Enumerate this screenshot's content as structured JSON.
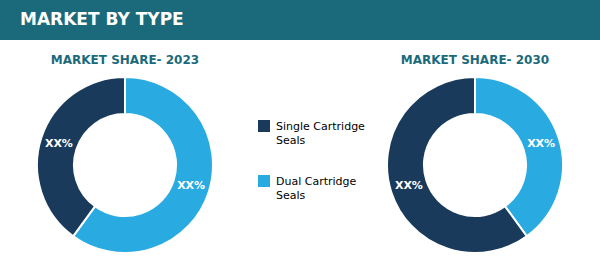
{
  "title": "MARKET BY TYPE",
  "chart_data": [
    {
      "type": "pie",
      "title": "MARKET SHARE- 2023",
      "categories": [
        "Dual Cartridge\nSeals",
        "Single Cartridge\nSeals"
      ],
      "values": [
        60,
        40
      ],
      "value_labels": [
        "XX%",
        "XX%"
      ],
      "colors": [
        "#29abe2",
        "#1a3a5c"
      ],
      "data_labels": true
    },
    {
      "type": "pie",
      "title": "MARKET SHARE- 2030",
      "categories": [
        "Dual Cartridge\nSeals",
        "Single Cartridge\nSeals"
      ],
      "values": [
        40,
        60
      ],
      "value_labels": [
        "XX%",
        "XX%"
      ],
      "colors": [
        "#29abe2",
        "#1a3a5c"
      ],
      "data_labels": true
    }
  ]
}
